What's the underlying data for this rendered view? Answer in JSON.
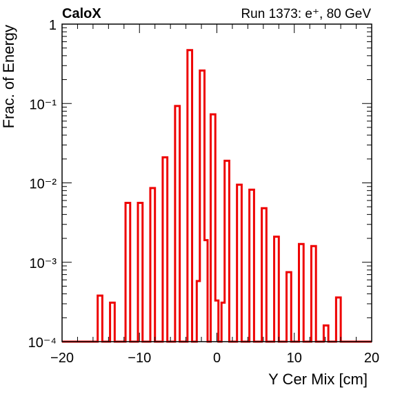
{
  "chart_data": {
    "type": "histogram",
    "title_left": "CaloX",
    "title_right": "Run 1373: e⁺, 80 GeV",
    "xlabel": "Y Cer Mix [cm]",
    "ylabel": "Frac. of Energy",
    "xlim": [
      -20,
      20
    ],
    "ylim": [
      0.0001,
      1
    ],
    "yscale": "log",
    "x_ticks": [
      "−20",
      "−10",
      "0",
      "10",
      "20"
    ],
    "y_ticks": [
      "10⁻⁴",
      "10⁻³",
      "10⁻²",
      "10⁻¹",
      "1"
    ],
    "line_color": "#ee0000",
    "grid": false,
    "bins": [
      {
        "x0": -15.4,
        "x1": -14.8,
        "y": 0.00038
      },
      {
        "x0": -13.8,
        "x1": -13.2,
        "y": 0.00031
      },
      {
        "x0": -11.8,
        "x1": -11.2,
        "y": 0.0056
      },
      {
        "x0": -10.2,
        "x1": -9.6,
        "y": 0.0056
      },
      {
        "x0": -8.6,
        "x1": -8.0,
        "y": 0.0086
      },
      {
        "x0": -7.0,
        "x1": -6.4,
        "y": 0.021
      },
      {
        "x0": -5.4,
        "x1": -4.8,
        "y": 0.093
      },
      {
        "x0": -3.8,
        "x1": -3.2,
        "y": 0.47
      },
      {
        "x0": -2.6,
        "x1": -2.2,
        "y": 0.00058
      },
      {
        "x0": -2.2,
        "x1": -1.6,
        "y": 0.26
      },
      {
        "x0": -1.6,
        "x1": -1.2,
        "y": 0.0019
      },
      {
        "x0": -0.8,
        "x1": -0.2,
        "y": 0.073
      },
      {
        "x0": -0.2,
        "x1": 0.2,
        "y": 0.00033
      },
      {
        "x0": 0.6,
        "x1": 1.0,
        "y": 0.00031
      },
      {
        "x0": 1.0,
        "x1": 1.6,
        "y": 0.019
      },
      {
        "x0": 2.6,
        "x1": 3.2,
        "y": 0.0095
      },
      {
        "x0": 4.2,
        "x1": 4.8,
        "y": 0.0082
      },
      {
        "x0": 5.8,
        "x1": 6.4,
        "y": 0.0048
      },
      {
        "x0": 7.4,
        "x1": 8.0,
        "y": 0.0021
      },
      {
        "x0": 9.0,
        "x1": 9.6,
        "y": 0.00075
      },
      {
        "x0": 10.6,
        "x1": 11.2,
        "y": 0.0017
      },
      {
        "x0": 12.2,
        "x1": 12.8,
        "y": 0.0016
      },
      {
        "x0": 13.8,
        "x1": 14.4,
        "y": 0.00016
      },
      {
        "x0": 15.4,
        "x1": 16.0,
        "y": 0.00036
      }
    ]
  }
}
